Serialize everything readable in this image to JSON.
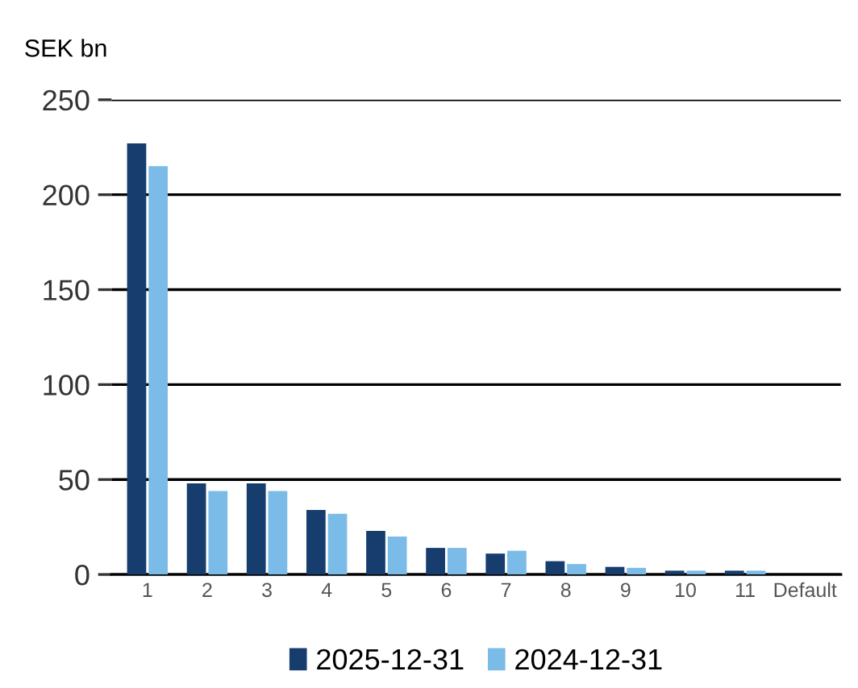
{
  "chart_data": {
    "type": "bar",
    "ylabel": "SEK bn",
    "categories": [
      "1",
      "2",
      "3",
      "4",
      "5",
      "6",
      "7",
      "8",
      "9",
      "10",
      "11",
      "Default"
    ],
    "series": [
      {
        "name": "2025-12-31",
        "color": "#163d6e",
        "values": [
          227,
          48,
          48,
          34,
          23,
          14,
          11,
          7,
          4,
          2,
          2,
          0
        ]
      },
      {
        "name": "2024-12-31",
        "color": "#7bbbe8",
        "values": [
          215,
          44,
          44,
          32,
          20,
          14,
          12.5,
          5.5,
          3.5,
          2,
          2,
          0
        ]
      }
    ],
    "ylim": [
      0,
      250
    ],
    "yticks": [
      0,
      50,
      100,
      150,
      200,
      250
    ],
    "grid": "y",
    "legend": "bottom"
  }
}
